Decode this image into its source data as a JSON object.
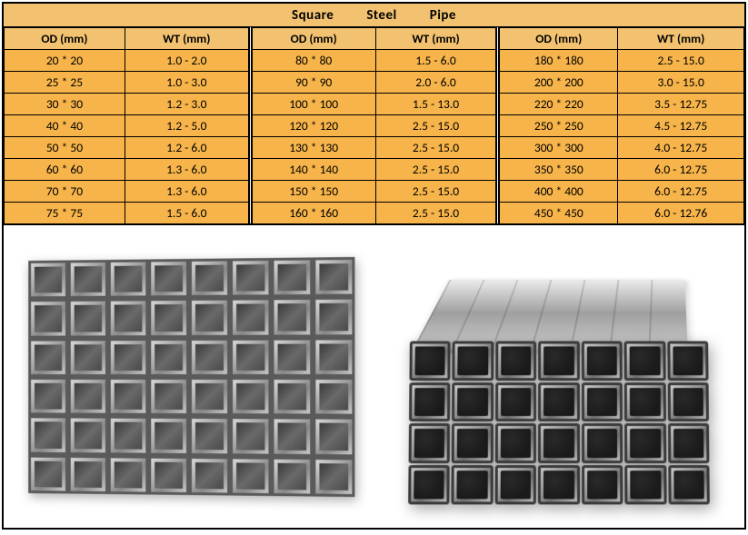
{
  "title_words": [
    "Square",
    "Steel",
    "Pipe"
  ],
  "header_bg": "#f2c270",
  "row_bg": "#f6b44a",
  "border_color": "#000000",
  "font_family": "Calibri",
  "title_fontsize": 15,
  "cell_fontsize": 13.5,
  "columns": [
    "OD (mm)",
    "WT (mm)"
  ],
  "groups": [
    {
      "rows": [
        {
          "od": "20 * 20",
          "wt": "1.0 - 2.0"
        },
        {
          "od": "25 * 25",
          "wt": "1.0 - 3.0"
        },
        {
          "od": "30 * 30",
          "wt": "1.2 - 3.0"
        },
        {
          "od": "40 * 40",
          "wt": "1.2 - 5.0"
        },
        {
          "od": "50 * 50",
          "wt": "1.2 - 6.0"
        },
        {
          "od": "60 * 60",
          "wt": "1.3 - 6.0"
        },
        {
          "od": "70 * 70",
          "wt": "1.3 - 6.0"
        },
        {
          "od": "75 * 75",
          "wt": "1.5 - 6.0"
        }
      ]
    },
    {
      "rows": [
        {
          "od": "80 * 80",
          "wt": "1.5 - 6.0"
        },
        {
          "od": "90 * 90",
          "wt": "2.0 - 6.0"
        },
        {
          "od": "100 * 100",
          "wt": "1.5 - 13.0"
        },
        {
          "od": "120 * 120",
          "wt": "2.5 - 15.0"
        },
        {
          "od": "130 * 130",
          "wt": "2.5 - 15.0"
        },
        {
          "od": "140 * 140",
          "wt": "2.5 - 15.0"
        },
        {
          "od": "150 * 150",
          "wt": "2.5 - 15.0"
        },
        {
          "od": "160 * 160",
          "wt": "2.5 - 15.0"
        }
      ]
    },
    {
      "rows": [
        {
          "od": "180 * 180",
          "wt": "2.5 - 15.0"
        },
        {
          "od": "200 * 200",
          "wt": "3.0 - 15.0"
        },
        {
          "od": "220 * 220",
          "wt": "3.5 - 12.75"
        },
        {
          "od": "250 * 250",
          "wt": "4.5 - 12.75"
        },
        {
          "od": "300 * 300",
          "wt": "4.0 - 12.75"
        },
        {
          "od": "350 * 350",
          "wt": "6.0 - 12.75"
        },
        {
          "od": "400 * 400",
          "wt": "6.0 - 12.75"
        },
        {
          "od": "450 * 450",
          "wt": "6.0 - 12.76"
        }
      ]
    }
  ],
  "images": {
    "left_caption": "stacked-square-tubes-front",
    "right_caption": "stacked-square-tubes-perspective",
    "left_grid": {
      "cols": 8,
      "rows": 6
    },
    "right_grid": {
      "cols": 7,
      "rows": 4
    }
  }
}
